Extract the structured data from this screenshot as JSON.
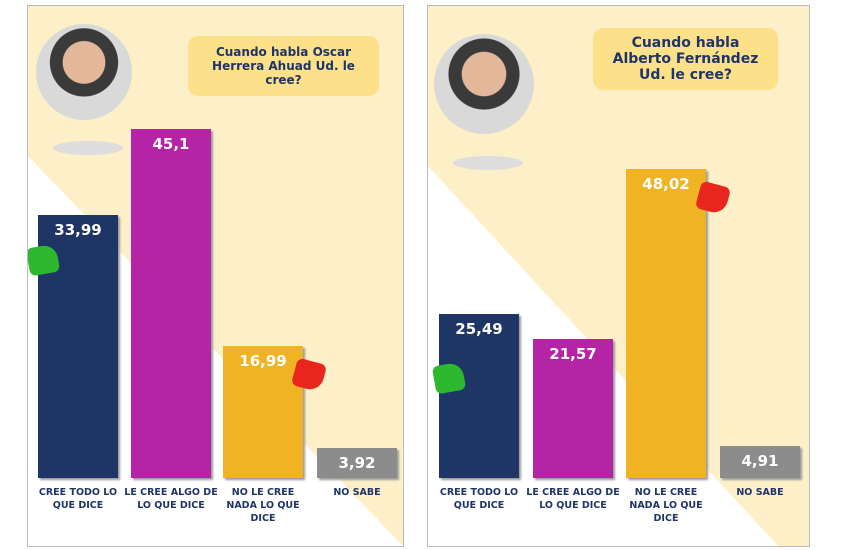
{
  "chart_data": [
    {
      "type": "bar",
      "title": "Cuando habla Oscar Herrera Ahuad Ud. le cree?",
      "categories": [
        "CREE TODO LO QUE DICE",
        "LE CREE ALGO DE LO QUE DICE",
        "NO LE CREE NADA LO QUE DICE",
        "NO SABE"
      ],
      "values": [
        33.99,
        45.1,
        16.99,
        3.92
      ],
      "value_labels": [
        "33,99",
        "45,1",
        "16,99",
        "3,92"
      ],
      "colors": [
        "#1f3566",
        "#b523a6",
        "#f0b323",
        "#8c8c8c"
      ]
    },
    {
      "type": "bar",
      "title": "Cuando habla Alberto Fernández Ud. le cree?",
      "categories": [
        "CREE TODO LO QUE DICE",
        "LE CREE ALGO DE LO QUE DICE",
        "NO LE CREE NADA LO QUE DICE",
        "NO SABE"
      ],
      "values": [
        25.49,
        21.57,
        48.02,
        4.91
      ],
      "value_labels": [
        "25,49",
        "21,57",
        "48,02",
        "4,91"
      ],
      "colors": [
        "#1f3566",
        "#b523a6",
        "#f0b323",
        "#8c8c8c"
      ]
    }
  ]
}
